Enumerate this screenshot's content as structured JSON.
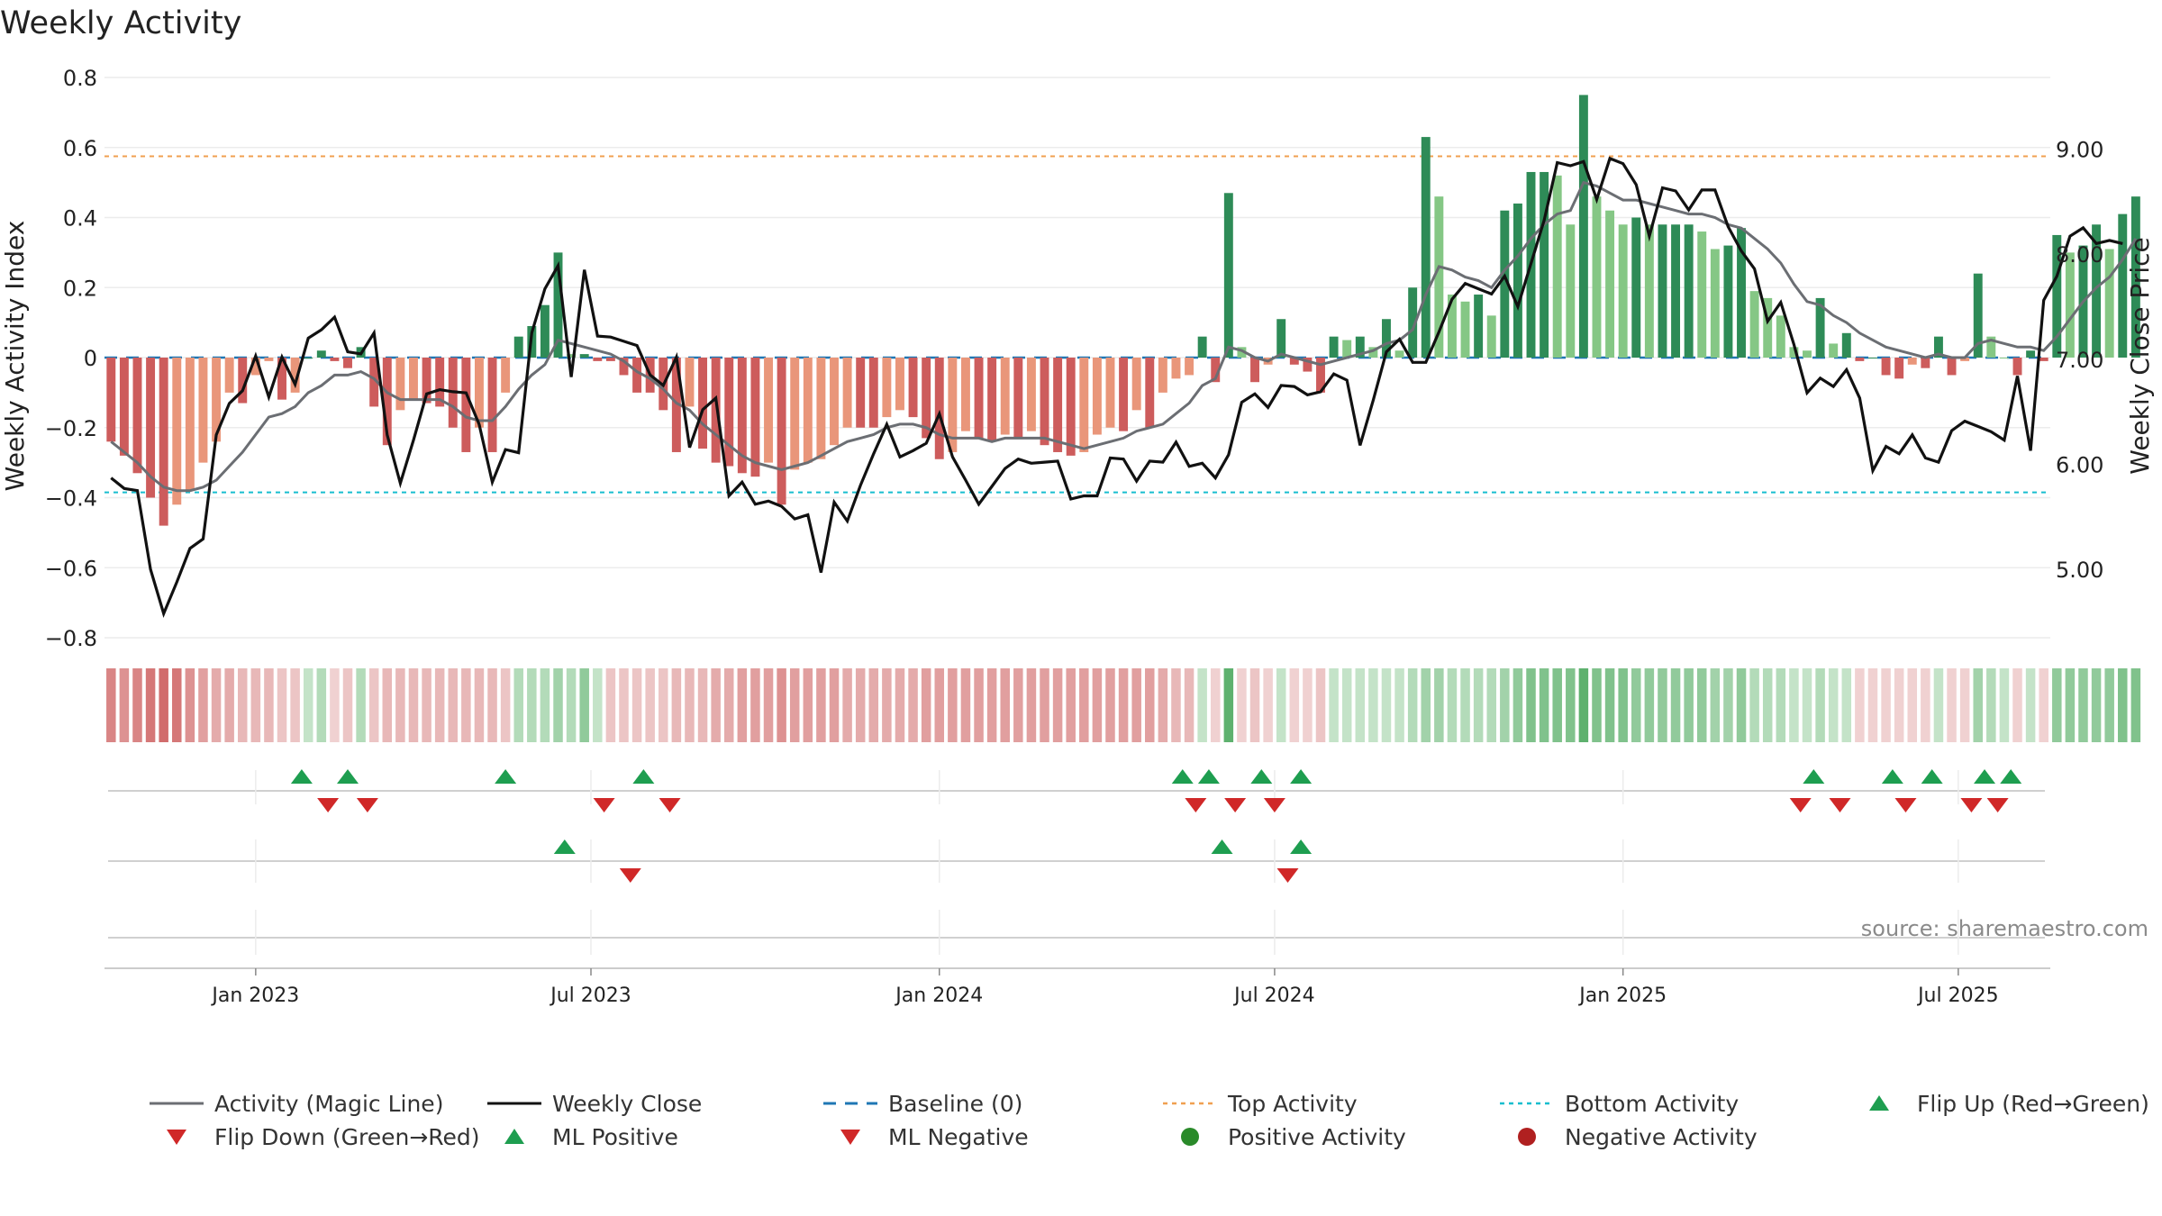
{
  "title": "Weekly Activity",
  "source": "source: sharemaestro.com",
  "colors": {
    "pos_dark": "#2e8b57",
    "pos_light": "#85c785",
    "neg_dark": "#cd5c5c",
    "neg_light": "#e9967a",
    "magic": "#6b6e73",
    "close": "#111111",
    "baseline": "#1f77b4",
    "top": "#f0a050",
    "bottom": "#17becf",
    "up": "#1e9e50",
    "down": "#d02828",
    "pos_dot": "#2a8a2a",
    "neg_dot": "#b02020"
  },
  "chart_data": {
    "type": "bar",
    "title": "Weekly Activity",
    "ylabel": "Weekly Activity Index",
    "y2label": "Weekly Close Price",
    "ylim": [
      -0.8,
      0.8
    ],
    "y2lim": [
      4.35,
      9.68
    ],
    "yticks": [
      0.8,
      0.6,
      0.4,
      0.2,
      0,
      -0.2,
      -0.4,
      -0.6,
      -0.8
    ],
    "ytick_labels": [
      "0.8",
      "0.6",
      "0.4",
      "0.2",
      "0",
      "−0.2",
      "−0.4",
      "−0.6",
      "−0.8"
    ],
    "y2ticks": [
      9,
      8,
      7,
      6,
      5
    ],
    "y2tick_labels": [
      "9.00",
      "8.00",
      "7.00",
      "6.00",
      "5.00"
    ],
    "x_weeks": 148,
    "xticks": [
      {
        "week": 11,
        "label": "Jan 2023"
      },
      {
        "week": 36.5,
        "label": "Jul 2023"
      },
      {
        "week": 63,
        "label": "Jan 2024"
      },
      {
        "week": 88.5,
        "label": "Jul 2024"
      },
      {
        "week": 115,
        "label": "Jan 2025"
      },
      {
        "week": 140.5,
        "label": "Jul 2025"
      }
    ],
    "top_activity": 0.575,
    "bottom_activity": -0.385,
    "activity": [
      -0.24,
      -0.28,
      -0.33,
      -0.4,
      -0.48,
      -0.42,
      -0.38,
      -0.3,
      -0.24,
      -0.1,
      -0.13,
      -0.05,
      -0.01,
      -0.12,
      -0.1,
      0.0,
      0.02,
      -0.01,
      -0.03,
      0.03,
      -0.14,
      -0.25,
      -0.15,
      -0.12,
      -0.13,
      -0.14,
      -0.2,
      -0.27,
      -0.2,
      -0.27,
      -0.1,
      0.06,
      0.09,
      0.15,
      0.3,
      0.01,
      0.01,
      -0.01,
      -0.01,
      -0.05,
      -0.1,
      -0.1,
      -0.15,
      -0.27,
      -0.14,
      -0.26,
      -0.3,
      -0.31,
      -0.33,
      -0.34,
      -0.3,
      -0.42,
      -0.32,
      -0.3,
      -0.29,
      -0.25,
      -0.2,
      -0.2,
      -0.2,
      -0.17,
      -0.15,
      -0.17,
      -0.23,
      -0.29,
      -0.27,
      -0.21,
      -0.23,
      -0.24,
      -0.22,
      -0.23,
      -0.21,
      -0.25,
      -0.27,
      -0.28,
      -0.27,
      -0.22,
      -0.2,
      -0.21,
      -0.15,
      -0.2,
      -0.1,
      -0.06,
      -0.05,
      0.06,
      -0.07,
      0.47,
      0.03,
      -0.07,
      -0.02,
      0.11,
      -0.02,
      -0.04,
      -0.1,
      0.06,
      0.05,
      0.06,
      0.03,
      0.11,
      0.02,
      0.2,
      0.63,
      0.46,
      0.18,
      0.16,
      0.18,
      0.12,
      0.42,
      0.44,
      0.53,
      0.53,
      0.52,
      0.38,
      0.75,
      0.46,
      0.42,
      0.38,
      0.4,
      0.38,
      0.38,
      0.38,
      0.38,
      0.36,
      0.31,
      0.32,
      0.37,
      0.19,
      0.17,
      0.12,
      0.03,
      0.02,
      0.17,
      0.04,
      0.07,
      -0.01,
      0.0,
      -0.05,
      -0.06,
      -0.02,
      -0.03,
      0.06,
      -0.05,
      -0.01,
      0.24,
      0.06,
      0.0,
      -0.05,
      0.02,
      -0.01,
      0.35,
      0.3,
      0.32,
      0.38,
      0.31,
      0.41,
      0.46
    ],
    "magic_line": [
      -0.24,
      -0.27,
      -0.3,
      -0.34,
      -0.37,
      -0.38,
      -0.38,
      -0.37,
      -0.35,
      -0.31,
      -0.27,
      -0.22,
      -0.17,
      -0.16,
      -0.14,
      -0.1,
      -0.08,
      -0.05,
      -0.05,
      -0.04,
      -0.06,
      -0.1,
      -0.12,
      -0.12,
      -0.12,
      -0.12,
      -0.14,
      -0.17,
      -0.18,
      -0.18,
      -0.14,
      -0.09,
      -0.05,
      -0.02,
      0.05,
      0.04,
      0.03,
      0.02,
      0.01,
      -0.01,
      -0.04,
      -0.06,
      -0.09,
      -0.13,
      -0.15,
      -0.19,
      -0.22,
      -0.25,
      -0.28,
      -0.3,
      -0.31,
      -0.32,
      -0.31,
      -0.3,
      -0.28,
      -0.26,
      -0.24,
      -0.23,
      -0.22,
      -0.2,
      -0.19,
      -0.19,
      -0.2,
      -0.22,
      -0.23,
      -0.23,
      -0.23,
      -0.24,
      -0.23,
      -0.23,
      -0.23,
      -0.23,
      -0.24,
      -0.25,
      -0.26,
      -0.25,
      -0.24,
      -0.23,
      -0.21,
      -0.2,
      -0.19,
      -0.16,
      -0.13,
      -0.08,
      -0.06,
      0.03,
      0.02,
      0.0,
      -0.01,
      0.01,
      0.0,
      -0.01,
      -0.02,
      -0.01,
      0.0,
      0.01,
      0.02,
      0.04,
      0.05,
      0.08,
      0.18,
      0.26,
      0.25,
      0.23,
      0.22,
      0.2,
      0.25,
      0.29,
      0.34,
      0.38,
      0.41,
      0.42,
      0.5,
      0.49,
      0.47,
      0.45,
      0.45,
      0.44,
      0.43,
      0.42,
      0.41,
      0.41,
      0.4,
      0.38,
      0.37,
      0.34,
      0.31,
      0.27,
      0.21,
      0.16,
      0.15,
      0.12,
      0.1,
      0.07,
      0.05,
      0.03,
      0.02,
      0.01,
      0.0,
      0.01,
      0.0,
      0.0,
      0.04,
      0.05,
      0.04,
      0.03,
      0.03,
      0.02,
      0.06,
      0.11,
      0.16,
      0.2,
      0.23,
      0.28,
      0.34
    ],
    "weekly_close": [
      5.87,
      5.77,
      5.75,
      5.0,
      4.58,
      4.88,
      5.2,
      5.29,
      6.28,
      6.58,
      6.7,
      7.03,
      6.64,
      7.02,
      6.76,
      7.2,
      7.28,
      7.4,
      7.07,
      7.05,
      7.25,
      6.28,
      5.82,
      6.23,
      6.67,
      6.71,
      6.69,
      6.68,
      6.38,
      5.83,
      6.14,
      6.11,
      7.25,
      7.67,
      7.89,
      6.83,
      7.85,
      7.22,
      7.21,
      7.17,
      7.13,
      6.85,
      6.75,
      7.02,
      6.16,
      6.52,
      6.63,
      5.7,
      5.83,
      5.62,
      5.65,
      5.6,
      5.48,
      5.52,
      4.97,
      5.64,
      5.46,
      5.8,
      6.1,
      6.38,
      6.07,
      6.13,
      6.2,
      6.48,
      6.07,
      5.85,
      5.62,
      5.79,
      5.96,
      6.05,
      6.01,
      6.02,
      6.03,
      5.67,
      5.7,
      5.7,
      6.06,
      6.05,
      5.84,
      6.03,
      6.02,
      6.21,
      5.98,
      6.01,
      5.87,
      6.09,
      6.59,
      6.67,
      6.54,
      6.75,
      6.74,
      6.66,
      6.69,
      6.86,
      6.8,
      6.18,
      6.61,
      7.07,
      7.19,
      6.97,
      6.97,
      7.26,
      7.57,
      7.72,
      7.67,
      7.62,
      7.79,
      7.5,
      7.91,
      8.32,
      8.87,
      8.84,
      8.88,
      8.52,
      8.91,
      8.86,
      8.66,
      8.17,
      8.63,
      8.6,
      8.42,
      8.61,
      8.61,
      8.26,
      8.03,
      7.86,
      7.36,
      7.54,
      7.14,
      6.68,
      6.82,
      6.74,
      6.9,
      6.63,
      5.94,
      6.17,
      6.1,
      6.28,
      6.06,
      6.02,
      6.32,
      6.41,
      6.36,
      6.31,
      6.23,
      6.84,
      6.13,
      7.56,
      7.79,
      8.17,
      8.25,
      8.1,
      8.13,
      8.1
    ],
    "regime": [
      -0.7,
      -0.6,
      -0.7,
      -0.8,
      -0.9,
      -0.8,
      -0.6,
      -0.5,
      -0.4,
      -0.4,
      -0.3,
      -0.3,
      -0.3,
      -0.2,
      -0.2,
      0.2,
      0.3,
      -0.1,
      -0.2,
      0.3,
      -0.2,
      -0.3,
      -0.3,
      -0.3,
      -0.3,
      -0.3,
      -0.3,
      -0.3,
      -0.3,
      -0.3,
      -0.2,
      0.3,
      0.3,
      0.3,
      0.4,
      0.3,
      0.5,
      0.2,
      -0.2,
      -0.2,
      -0.2,
      -0.2,
      -0.2,
      -0.3,
      -0.3,
      -0.3,
      -0.4,
      -0.4,
      -0.5,
      -0.5,
      -0.5,
      -0.6,
      -0.5,
      -0.5,
      -0.5,
      -0.5,
      -0.4,
      -0.4,
      -0.4,
      -0.4,
      -0.4,
      -0.4,
      -0.5,
      -0.5,
      -0.5,
      -0.5,
      -0.5,
      -0.5,
      -0.5,
      -0.5,
      -0.5,
      -0.5,
      -0.5,
      -0.5,
      -0.5,
      -0.5,
      -0.5,
      -0.5,
      -0.5,
      -0.5,
      -0.4,
      -0.3,
      -0.3,
      0.2,
      -0.1,
      0.8,
      -0.1,
      -0.2,
      -0.1,
      0.2,
      -0.1,
      -0.1,
      -0.2,
      0.2,
      0.2,
      0.2,
      0.2,
      0.2,
      0.2,
      0.3,
      0.4,
      0.4,
      0.3,
      0.3,
      0.3,
      0.3,
      0.4,
      0.5,
      0.6,
      0.6,
      0.6,
      0.6,
      0.8,
      0.6,
      0.6,
      0.6,
      0.5,
      0.5,
      0.5,
      0.5,
      0.5,
      0.5,
      0.4,
      0.4,
      0.5,
      0.3,
      0.3,
      0.3,
      0.2,
      0.2,
      0.3,
      0.2,
      0.2,
      -0.1,
      -0.1,
      -0.1,
      -0.1,
      -0.1,
      -0.1,
      0.2,
      -0.1,
      -0.1,
      0.4,
      0.3,
      0.2,
      -0.1,
      0.2,
      -0.1,
      0.5,
      0.5,
      0.5,
      0.5,
      0.5,
      0.6,
      0.6
    ],
    "flip_up_weeks": [
      14.5,
      18,
      30,
      40.5,
      81.5,
      83.5,
      87.5,
      90.5,
      129.5,
      135.5,
      138.5,
      142.5,
      144.5
    ],
    "flip_down_weeks": [
      16.5,
      19.5,
      37.5,
      42.5,
      82.5,
      85.5,
      88.5,
      128.5,
      131.5,
      136.5,
      141.5,
      143.5
    ],
    "ml_positive_weeks": [
      34.5,
      84.5,
      90.5
    ],
    "ml_negative_weeks": [
      39.5,
      89.5
    ]
  },
  "legend": [
    {
      "label": "Activity (Magic Line)",
      "marker": "line-gray"
    },
    {
      "label": "Weekly Close",
      "marker": "line-black"
    },
    {
      "label": "Baseline (0)",
      "marker": "dash-blue"
    },
    {
      "label": "Top Activity",
      "marker": "dot-orange"
    },
    {
      "label": "Bottom Activity",
      "marker": "dot-cyan"
    },
    {
      "label": "Flip Up (Red→Green)",
      "marker": "tri-up"
    },
    {
      "label": "Flip Down (Green→Red)",
      "marker": "tri-down"
    },
    {
      "label": "ML Positive",
      "marker": "tri-up"
    },
    {
      "label": "ML Negative",
      "marker": "tri-down"
    },
    {
      "label": "Positive Activity",
      "marker": "dot-green"
    },
    {
      "label": "Negative Activity",
      "marker": "dot-red"
    }
  ]
}
